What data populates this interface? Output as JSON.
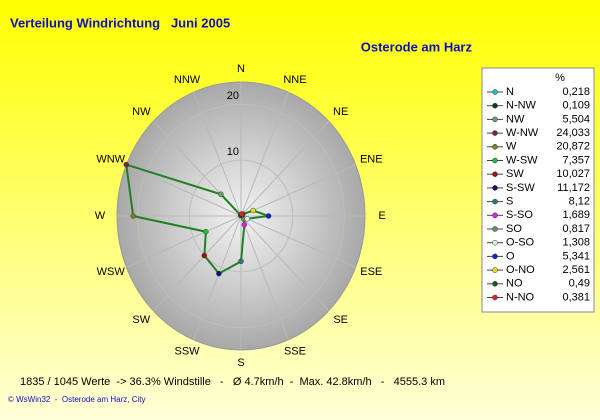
{
  "chart_data": {
    "type": "radar",
    "title": "Verteilung Windrichtung   Juni 2005",
    "subtitle": "Osterode am Harz",
    "directions": [
      "N",
      "NNE",
      "NE",
      "ENE",
      "E",
      "ESE",
      "SE",
      "SSE",
      "S",
      "SSW",
      "SW",
      "WSW",
      "W",
      "WNW",
      "NW",
      "NNW"
    ],
    "legend_title": "%",
    "series": [
      {
        "name": "N",
        "color": "#20c0c0",
        "values": [
          0.218
        ],
        "value_labels": [
          "0,218"
        ]
      },
      {
        "name": "N-NW",
        "color": "#004020",
        "values": [
          0.109
        ],
        "value_labels": [
          "0,109"
        ]
      },
      {
        "name": "NW",
        "color": "#70a070",
        "values": [
          5.504
        ],
        "value_labels": [
          "5,504"
        ]
      },
      {
        "name": "W-NW",
        "color": "#802040",
        "values": [
          24.033
        ],
        "value_labels": [
          "24,033"
        ]
      },
      {
        "name": "W",
        "color": "#808020",
        "values": [
          20.872
        ],
        "value_labels": [
          "20,872"
        ]
      },
      {
        "name": "W-SW",
        "color": "#20c040",
        "values": [
          7.357
        ],
        "value_labels": [
          "7,357"
        ]
      },
      {
        "name": "SW",
        "color": "#a01010",
        "values": [
          10.027
        ],
        "value_labels": [
          "10,027"
        ]
      },
      {
        "name": "S-SW",
        "color": "#101080",
        "values": [
          11.172
        ],
        "value_labels": [
          "11,172"
        ]
      },
      {
        "name": "S",
        "color": "#208080",
        "values": [
          8.12
        ],
        "value_labels": [
          "8,12"
        ]
      },
      {
        "name": "S-SO",
        "color": "#e020e0",
        "values": [
          1.689
        ],
        "value_labels": [
          "1,689"
        ]
      },
      {
        "name": "SO",
        "color": "#609060",
        "values": [
          0.817
        ],
        "value_labels": [
          "0,817"
        ]
      },
      {
        "name": "O-SO",
        "color": "#e0f0e0",
        "values": [
          1.308
        ],
        "value_labels": [
          "1,308"
        ]
      },
      {
        "name": "O",
        "color": "#1020e0",
        "values": [
          5.341
        ],
        "value_labels": [
          "5,341"
        ]
      },
      {
        "name": "O-NO",
        "color": "#e0e020",
        "values": [
          2.561
        ],
        "value_labels": [
          "2,561"
        ]
      },
      {
        "name": "NO",
        "color": "#106010",
        "values": [
          0.49
        ],
        "value_labels": [
          "0,49"
        ]
      },
      {
        "name": "N-NO",
        "color": "#e02020",
        "values": [
          0.381
        ],
        "value_labels": [
          "0,381"
        ]
      }
    ],
    "line_color": "#208020",
    "rlim": [
      0,
      24
    ],
    "rticks": [
      10,
      20
    ],
    "notes": [
      "1835 / 1045 Werte  -> 36.3% Windstille   -   Ø 4.7km/h  -  Max. 42.8km/h   -   4555.3 km",
      "© WsWin32  -  Osterode am Harz, City"
    ]
  }
}
